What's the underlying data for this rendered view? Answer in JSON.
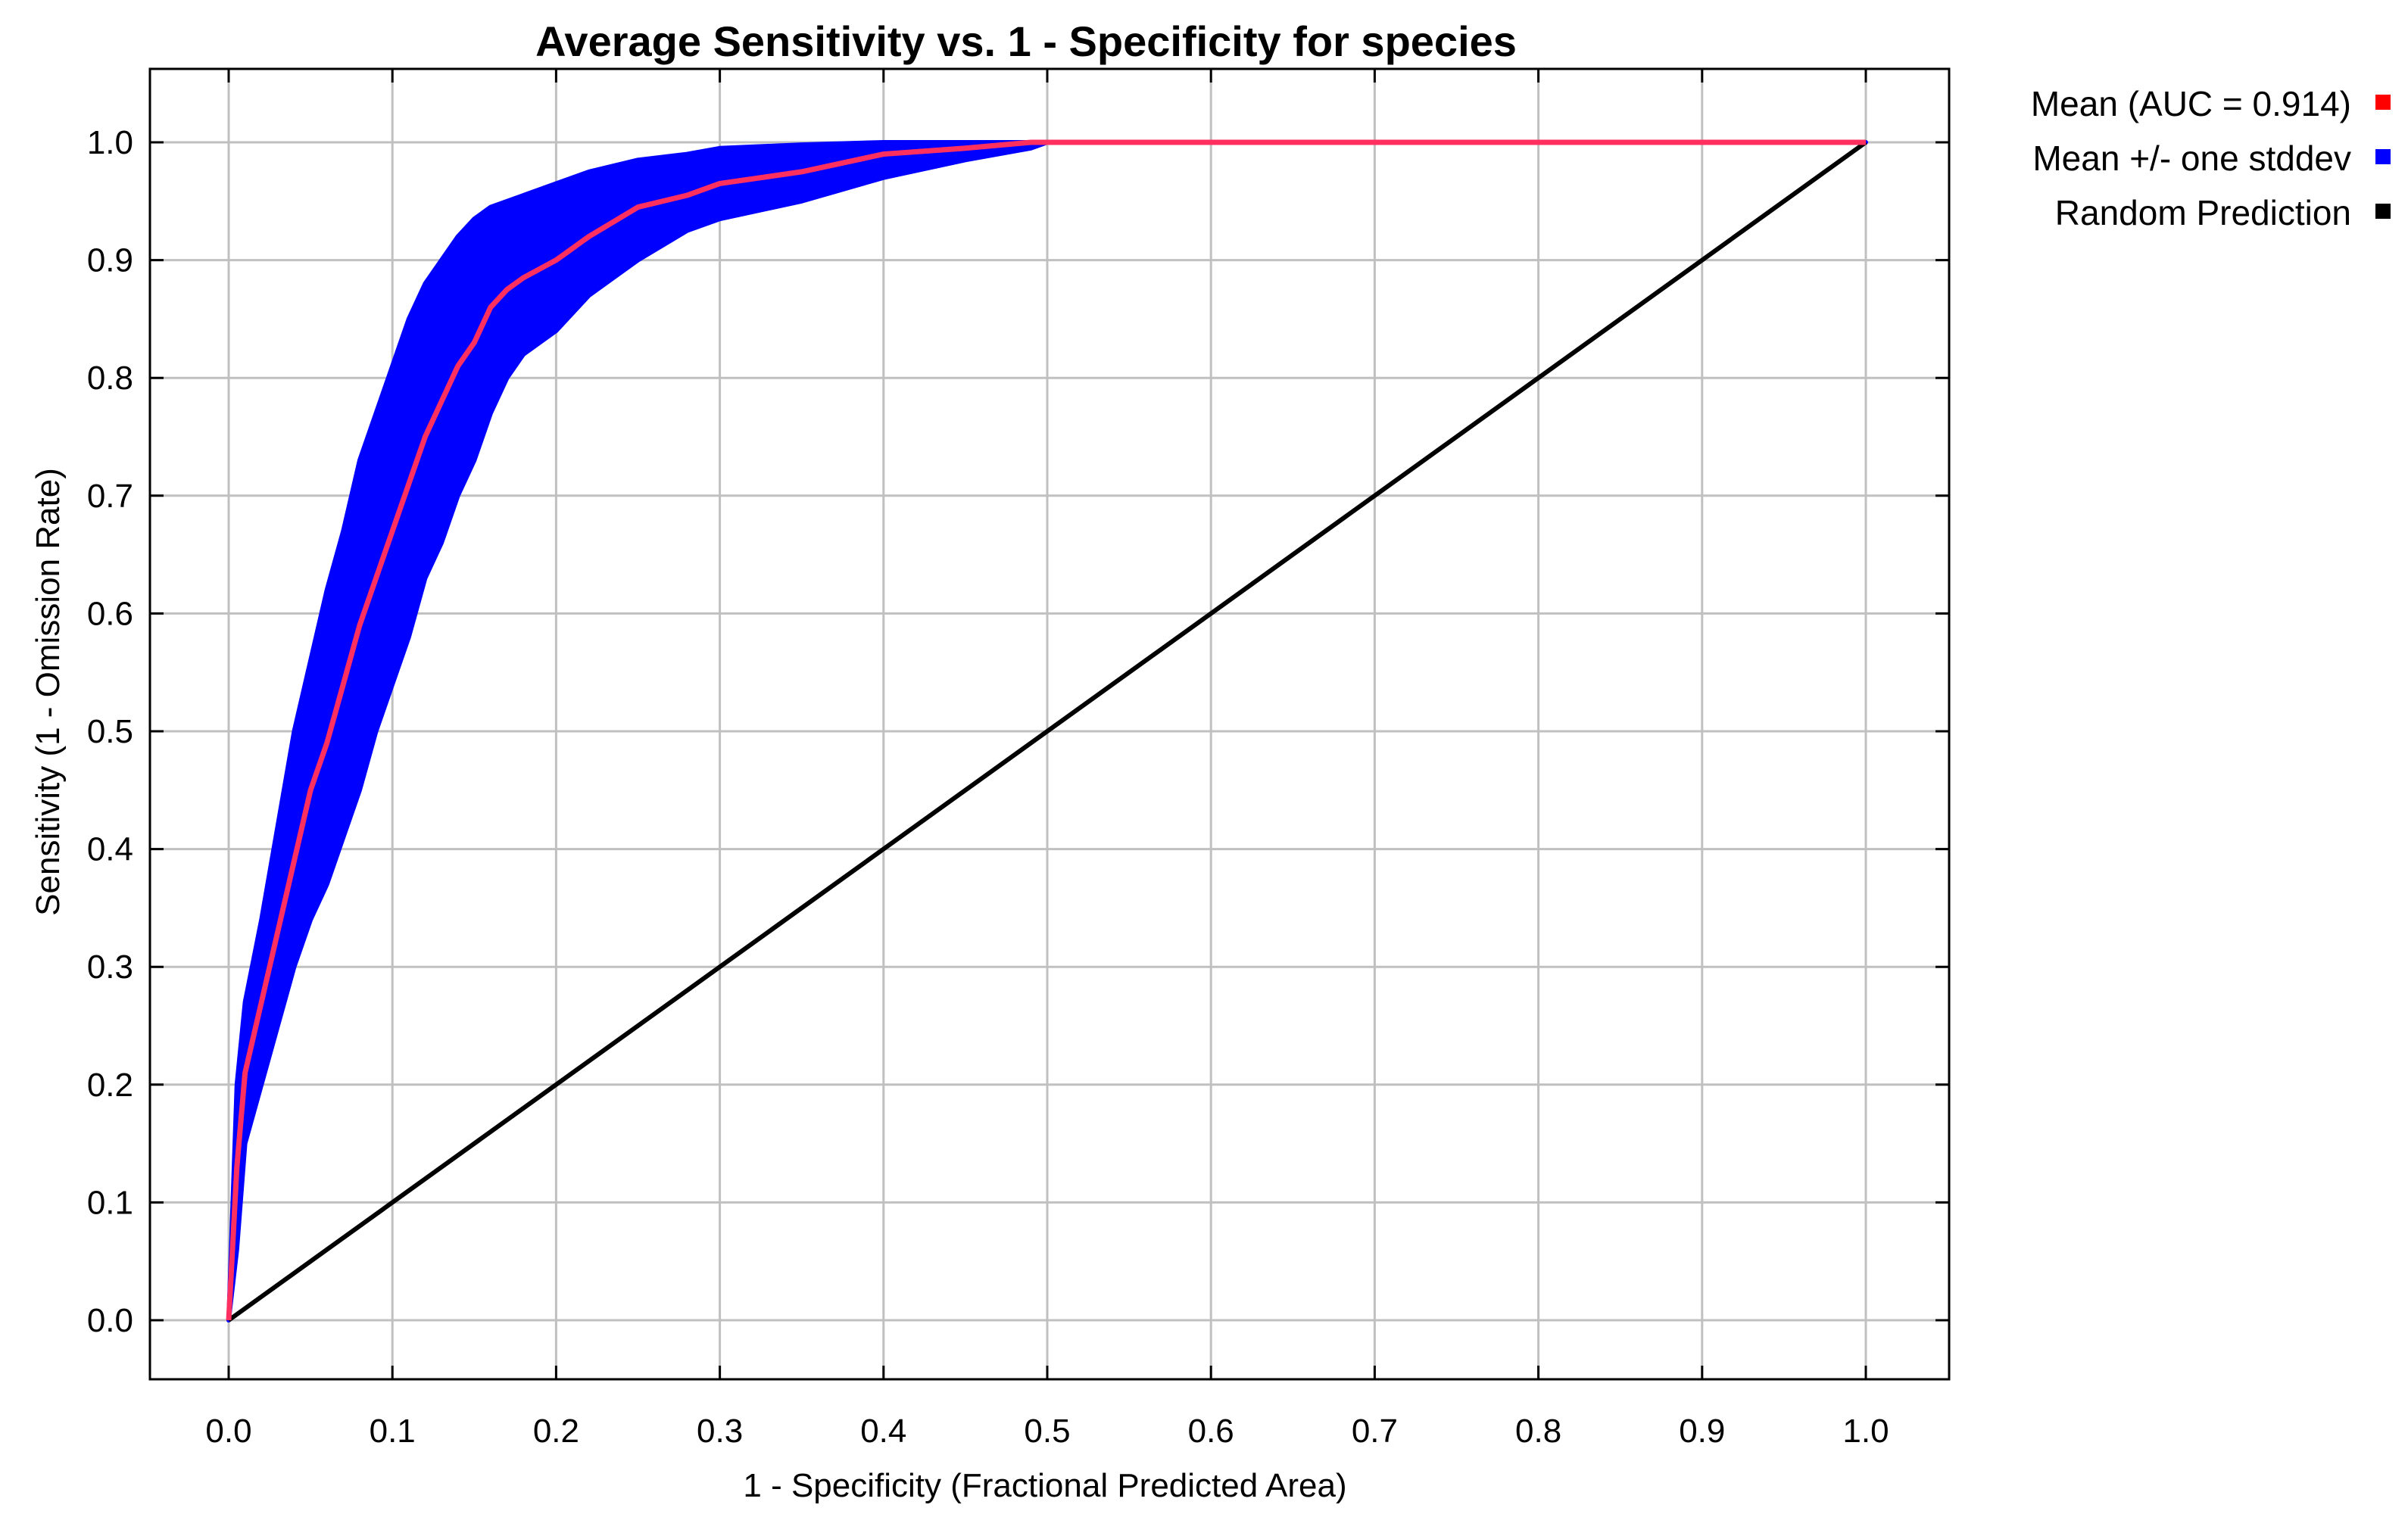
{
  "chart_data": {
    "type": "line",
    "title": "Average Sensitivity vs. 1 - Specificity for species",
    "xlabel": "1 - Specificity (Fractional Predicted Area)",
    "ylabel": "Sensitivity (1 - Omission Rate)",
    "xlim": [
      -0.05,
      1.05
    ],
    "ylim": [
      -0.05,
      1.05
    ],
    "x_ticks": [
      "0.0",
      "0.1",
      "0.2",
      "0.3",
      "0.4",
      "0.5",
      "0.6",
      "0.7",
      "0.8",
      "0.9",
      "1.0"
    ],
    "y_ticks": [
      "0.0",
      "0.1",
      "0.2",
      "0.3",
      "0.4",
      "0.5",
      "0.6",
      "0.7",
      "0.8",
      "0.9",
      "1.0"
    ],
    "grid": true,
    "legend_placement": "outside-top-right",
    "legend": [
      {
        "label": "Mean (AUC = 0.914)",
        "color": "#ff0000"
      },
      {
        "label": "Mean +/- one stddev",
        "color": "#0000ff"
      },
      {
        "label": "Random Prediction",
        "color": "#000000"
      }
    ],
    "series": [
      {
        "name": "Mean (AUC = 0.914)",
        "color": "#ff0000",
        "x": [
          0.0,
          0.005,
          0.01,
          0.02,
          0.03,
          0.04,
          0.05,
          0.06,
          0.07,
          0.08,
          0.09,
          0.1,
          0.11,
          0.12,
          0.13,
          0.14,
          0.15,
          0.16,
          0.17,
          0.18,
          0.2,
          0.22,
          0.25,
          0.28,
          0.3,
          0.35,
          0.4,
          0.45,
          0.49,
          0.5,
          0.6,
          0.7,
          0.8,
          0.9,
          1.0
        ],
        "y": [
          0.0,
          0.13,
          0.21,
          0.27,
          0.33,
          0.39,
          0.45,
          0.49,
          0.54,
          0.59,
          0.63,
          0.67,
          0.71,
          0.75,
          0.78,
          0.81,
          0.83,
          0.86,
          0.875,
          0.885,
          0.9,
          0.92,
          0.945,
          0.955,
          0.965,
          0.975,
          0.99,
          0.995,
          1.0,
          1.0,
          1.0,
          1.0,
          1.0,
          1.0,
          1.0
        ]
      },
      {
        "name": "Mean +/- one stddev",
        "color": "#0000ff",
        "x": [
          0.0,
          0.005,
          0.01,
          0.02,
          0.03,
          0.04,
          0.05,
          0.06,
          0.07,
          0.08,
          0.09,
          0.1,
          0.11,
          0.12,
          0.13,
          0.14,
          0.15,
          0.16,
          0.17,
          0.18,
          0.2,
          0.22,
          0.25,
          0.28,
          0.3,
          0.35,
          0.4,
          0.45,
          0.49,
          0.5,
          0.6,
          0.7,
          0.8,
          0.9,
          1.0
        ],
        "upper": [
          0.0,
          0.2,
          0.27,
          0.34,
          0.42,
          0.5,
          0.56,
          0.62,
          0.67,
          0.73,
          0.77,
          0.81,
          0.85,
          0.88,
          0.9,
          0.92,
          0.935,
          0.945,
          0.95,
          0.955,
          0.965,
          0.975,
          0.985,
          0.99,
          0.995,
          0.998,
          1.0,
          1.0,
          1.0,
          1.0,
          1.0,
          1.0,
          1.0,
          1.0,
          1.0
        ],
        "lower": [
          0.0,
          0.06,
          0.15,
          0.2,
          0.25,
          0.3,
          0.34,
          0.37,
          0.41,
          0.45,
          0.5,
          0.54,
          0.58,
          0.63,
          0.66,
          0.7,
          0.73,
          0.77,
          0.8,
          0.82,
          0.84,
          0.87,
          0.9,
          0.925,
          0.935,
          0.95,
          0.97,
          0.985,
          0.995,
          1.0,
          1.0,
          1.0,
          1.0,
          1.0,
          1.0
        ]
      },
      {
        "name": "Random Prediction",
        "color": "#000000",
        "x": [
          0.0,
          1.0
        ],
        "y": [
          0.0,
          1.0
        ]
      }
    ]
  }
}
